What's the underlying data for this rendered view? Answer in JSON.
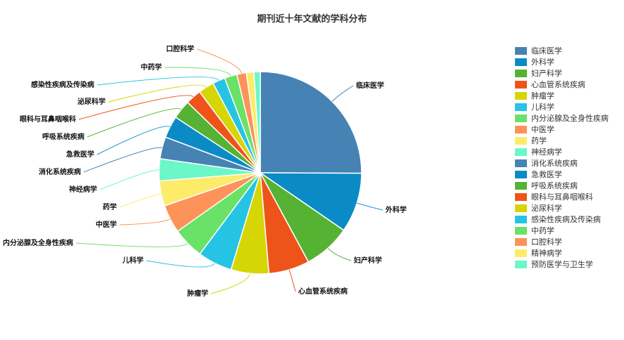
{
  "chart_data": {
    "type": "pie",
    "title": "期刊近十年文献的学科分布",
    "legend_position": "right",
    "slices": [
      {
        "name": "临床医学",
        "value": 25.0,
        "color": "#4682b4"
      },
      {
        "name": "外科学",
        "value": 9.5,
        "color": "#0b8bc6"
      },
      {
        "name": "妇产科学",
        "value": 7.5,
        "color": "#55b233"
      },
      {
        "name": "心血管系统疾病",
        "value": 6.5,
        "color": "#ee541a"
      },
      {
        "name": "肿瘤学",
        "value": 6.0,
        "color": "#d6d505"
      },
      {
        "name": "儿科学",
        "value": 5.5,
        "color": "#26c4e4"
      },
      {
        "name": "内分泌腺及全身性疾病",
        "value": 5.0,
        "color": "#6ae167"
      },
      {
        "name": "中医学",
        "value": 4.5,
        "color": "#fd9358"
      },
      {
        "name": "药学",
        "value": 4.0,
        "color": "#fdec6a"
      },
      {
        "name": "神经病学",
        "value": 3.5,
        "color": "#6cf7c8"
      },
      {
        "name": "消化系统疾病",
        "value": 3.5,
        "color": "#4682b4"
      },
      {
        "name": "急救医学",
        "value": 3.5,
        "color": "#0b8bc6"
      },
      {
        "name": "呼吸系统疾病",
        "value": 3.0,
        "color": "#55b233"
      },
      {
        "name": "眼科与耳鼻咽喉科",
        "value": 2.5,
        "color": "#ee541a"
      },
      {
        "name": "泌尿科学",
        "value": 2.5,
        "color": "#d6d505"
      },
      {
        "name": "感染性疾病及传染病",
        "value": 2.0,
        "color": "#26c4e4"
      },
      {
        "name": "中药学",
        "value": 2.0,
        "color": "#6ae167"
      },
      {
        "name": "口腔科学",
        "value": 1.5,
        "color": "#fd9358"
      },
      {
        "name": "精神病学",
        "value": 1.2,
        "color": "#fdec6a"
      },
      {
        "name": "预防医学与卫生学",
        "value": 1.0,
        "color": "#6cf7c8"
      }
    ],
    "labeled_slices": [
      "临床医学",
      "外科学",
      "妇产科学",
      "心血管系统疾病",
      "肿瘤学",
      "儿科学",
      "内分泌腺及全身性疾病",
      "中医学",
      "药学",
      "神经病学",
      "消化系统疾病",
      "急救医学",
      "呼吸系统疾病",
      "眼科与耳鼻咽喉科",
      "泌尿科学",
      "感染性疾病及传染病",
      "中药学",
      "口腔科学"
    ]
  }
}
